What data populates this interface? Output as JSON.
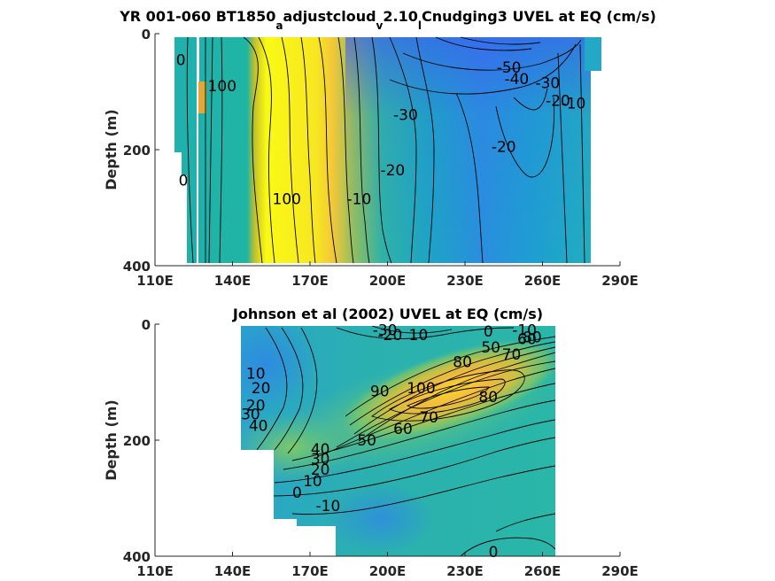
{
  "chart_data": [
    {
      "type": "heatmap",
      "subtype": "filled-contour",
      "title": "YR 001-060 BT1850_adjustcloud_v2.10_lCnudging3 UVEL at EQ (cm/s)",
      "title_parts": {
        "a": "YR 001-060 BT1850",
        "b": "adjustcloud",
        "c": "2.10",
        "d": "Cnudging3 UVEL at EQ (cm/s)"
      },
      "title_subscripts": [
        "a",
        "v",
        "l"
      ],
      "xlabel": "",
      "ylabel": "Depth (m)",
      "xlim": [
        110,
        290
      ],
      "ylim": [
        400,
        0
      ],
      "xticks": [
        "110E",
        "140E",
        "170E",
        "200E",
        "230E",
        "260E",
        "290E"
      ],
      "yticks": [
        "0",
        "200",
        "400"
      ],
      "data_extent": {
        "x": [
          118,
          279
        ],
        "depth": [
          5,
          395
        ]
      },
      "contour_labels": [
        {
          "text": "0",
          "x": 120,
          "depth": 45
        },
        {
          "text": "0",
          "x": 121,
          "depth": 253
        },
        {
          "text": "100",
          "x": 136,
          "depth": 90
        },
        {
          "text": "100",
          "x": 161,
          "depth": 285
        },
        {
          "text": "-50",
          "x": 247,
          "depth": 58
        },
        {
          "text": "-40",
          "x": 250,
          "depth": 78
        },
        {
          "text": "-30",
          "x": 207,
          "depth": 140
        },
        {
          "text": "-30",
          "x": 262,
          "depth": 85
        },
        {
          "text": "-20",
          "x": 266,
          "depth": 115
        },
        {
          "text": "-10",
          "x": 272,
          "depth": 120
        },
        {
          "text": "-20",
          "x": 245,
          "depth": 195
        },
        {
          "text": "-20",
          "x": 202,
          "depth": 235
        },
        {
          "text": "-10",
          "x": 189,
          "depth": 285
        }
      ]
    },
    {
      "type": "heatmap",
      "subtype": "filled-contour",
      "title": "Johnson et al (2002) UVEL at EQ (cm/s)",
      "xlabel": "",
      "ylabel": "Depth (m)",
      "xlim": [
        110,
        290
      ],
      "ylim": [
        400,
        0
      ],
      "xticks": [
        "110E",
        "140E",
        "170E",
        "200E",
        "230E",
        "260E",
        "290E"
      ],
      "yticks": [
        "0",
        "200",
        "400"
      ],
      "contour_labels": [
        {
          "text": "-30",
          "x": 199,
          "depth": 10
        },
        {
          "text": "-20",
          "x": 201,
          "depth": 18
        },
        {
          "text": "10",
          "x": 212,
          "depth": 18
        },
        {
          "text": "0",
          "x": 239,
          "depth": 12
        },
        {
          "text": "-10",
          "x": 253,
          "depth": 10
        },
        {
          "text": "50",
          "x": 240,
          "depth": 40
        },
        {
          "text": "60",
          "x": 254,
          "depth": 25
        },
        {
          "text": "80",
          "x": 256,
          "depth": 22
        },
        {
          "text": "70",
          "x": 248,
          "depth": 52
        },
        {
          "text": "80",
          "x": 229,
          "depth": 65
        },
        {
          "text": "100",
          "x": 213,
          "depth": 110
        },
        {
          "text": "90",
          "x": 197,
          "depth": 115
        },
        {
          "text": "80",
          "x": 239,
          "depth": 125
        },
        {
          "text": "70",
          "x": 216,
          "depth": 160
        },
        {
          "text": "60",
          "x": 206,
          "depth": 180
        },
        {
          "text": "50",
          "x": 192,
          "depth": 200
        },
        {
          "text": "10",
          "x": 149,
          "depth": 85
        },
        {
          "text": "20",
          "x": 151,
          "depth": 110
        },
        {
          "text": "20",
          "x": 149,
          "depth": 140
        },
        {
          "text": "30",
          "x": 147,
          "depth": 155
        },
        {
          "text": "40",
          "x": 150,
          "depth": 175
        },
        {
          "text": "40",
          "x": 174,
          "depth": 215
        },
        {
          "text": "30",
          "x": 174,
          "depth": 232
        },
        {
          "text": "20",
          "x": 174,
          "depth": 250
        },
        {
          "text": "10",
          "x": 171,
          "depth": 270
        },
        {
          "text": "0",
          "x": 165,
          "depth": 290
        },
        {
          "text": "-10",
          "x": 177,
          "depth": 313
        },
        {
          "text": "0",
          "x": 241,
          "depth": 392
        }
      ]
    }
  ]
}
